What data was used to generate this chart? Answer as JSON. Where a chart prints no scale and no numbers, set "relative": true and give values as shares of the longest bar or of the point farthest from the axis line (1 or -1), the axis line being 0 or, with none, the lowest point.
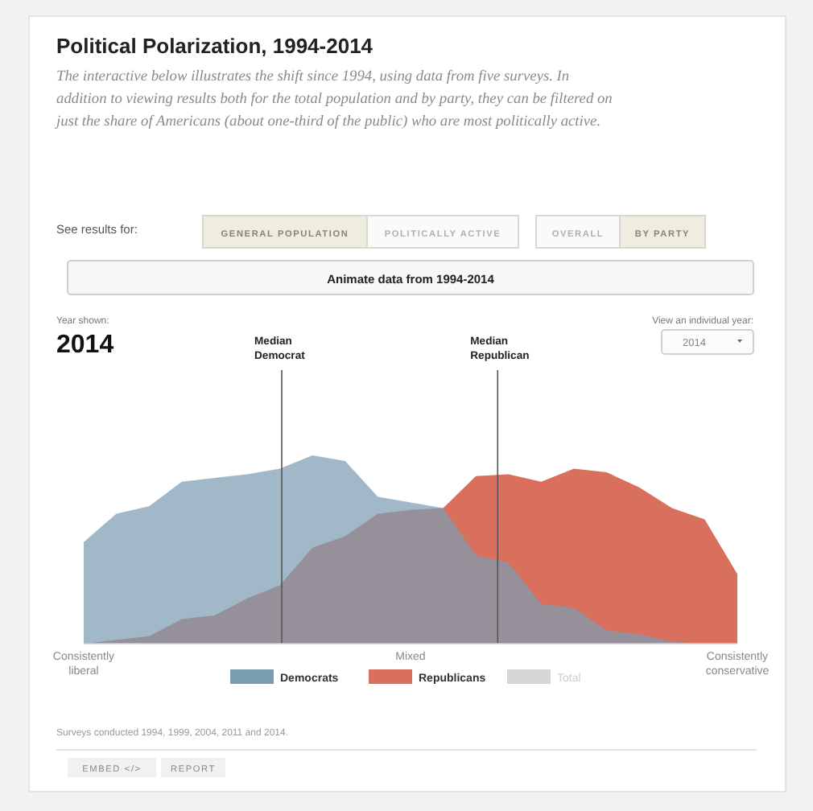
{
  "chart_data": {
    "type": "area",
    "title": "Political Polarization, 1994-2014",
    "subtitle": "The interactive below illustrates the shift since 1994, using data from five surveys. In addition to viewing results both for the total population and by party, they can be filtered on just the share of Americans (about one-third of the public) who are most politically active.",
    "relative": true,
    "categories": [
      "Consistently liberal",
      null,
      null,
      null,
      null,
      null,
      null,
      null,
      null,
      null,
      "Mixed",
      null,
      null,
      null,
      null,
      null,
      null,
      null,
      null,
      null,
      "Consistently conservative"
    ],
    "series": [
      {
        "name": "Democrats",
        "color": "#7b9db2",
        "values": [
          0.54,
          0.69,
          0.73,
          0.86,
          0.88,
          0.9,
          0.93,
          1,
          0.97,
          0.78,
          0.75,
          0.72,
          0.47,
          0.43,
          0.21,
          0.19,
          0.07,
          0.05,
          0.01,
          0,
          0
        ]
      },
      {
        "name": "Republicans",
        "color": "#d9705e",
        "values": [
          0,
          0.02,
          0.04,
          0.13,
          0.15,
          0.24,
          0.31,
          0.51,
          0.57,
          0.69,
          0.71,
          0.72,
          0.89,
          0.9,
          0.86,
          0.93,
          0.91,
          0.83,
          0.72,
          0.66,
          0.37
        ]
      },
      {
        "name": "Total",
        "color": "#d6d6d6",
        "values": [
          null,
          null,
          null,
          null,
          null,
          null,
          null,
          null,
          null,
          null,
          null,
          null,
          null,
          null,
          null,
          null,
          null,
          null,
          null,
          null,
          null
        ]
      }
    ],
    "legend": "bottom",
    "annotations": [
      "See results for:",
      "GENERAL POPULATION",
      "POLITICALLY ACTIVE",
      "OVERALL",
      "BY PARTY",
      "Animate data from 1994-2014",
      "Year shown:",
      "2014",
      "View an individual year:",
      "2014",
      "Surveys conducted 1994, 1999, 2004, 2011 and 2014.",
      "EMBED </>",
      "REPORT",
      "Median Democrat",
      "Median Republican"
    ]
  }
}
